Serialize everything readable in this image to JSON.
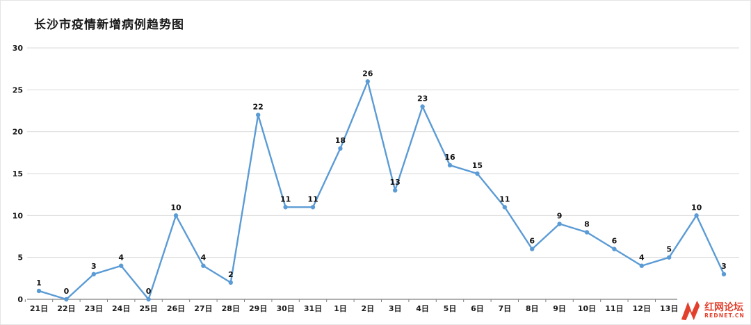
{
  "chart_data": {
    "type": "line",
    "title": "长沙市疫情新增病例趋势图",
    "categories": [
      "21日",
      "22日",
      "23日",
      "24日",
      "25日",
      "26日",
      "27日",
      "28日",
      "29日",
      "30日",
      "31日",
      "1日",
      "2日",
      "3日",
      "4日",
      "5日",
      "6日",
      "7日",
      "8日",
      "9日",
      "10日",
      "11日",
      "12日",
      "13日",
      "",
      ""
    ],
    "values": [
      1,
      0,
      3,
      4,
      0,
      10,
      4,
      2,
      22,
      11,
      11,
      18,
      26,
      13,
      23,
      16,
      15,
      11,
      6,
      9,
      8,
      6,
      4,
      5,
      10,
      3
    ],
    "xlabel": "",
    "ylabel": "",
    "ylim": [
      0,
      30
    ],
    "yticks": [
      0,
      5,
      10,
      15,
      20,
      25,
      30
    ],
    "grid": true,
    "legend_position": "none",
    "line_color": "#5B9BD5",
    "marker_color": "#5B9BD5",
    "grid_color": "#d9d9d9",
    "axis_color": "#7f7f7f",
    "label_color": "#1a1a1a"
  },
  "watermark": {
    "name": "红网论坛",
    "domain": "REDNET.CN",
    "color": "#e2402d"
  }
}
